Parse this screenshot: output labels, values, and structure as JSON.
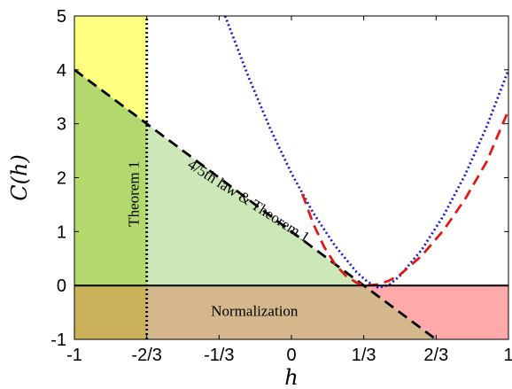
{
  "chart_data": {
    "type": "line",
    "xlabel": "h",
    "ylabel": "C(h)",
    "xlim": [
      -1,
      1
    ],
    "ylim": [
      -1,
      5
    ],
    "x_ticks": [
      {
        "value": -1,
        "label": "-1"
      },
      {
        "value": -0.6667,
        "label": "-2/3"
      },
      {
        "value": -0.3333,
        "label": "-1/3"
      },
      {
        "value": 0,
        "label": "0"
      },
      {
        "value": 0.3333,
        "label": "1/3"
      },
      {
        "value": 0.6667,
        "label": "2/3"
      },
      {
        "value": 1,
        "label": "1"
      }
    ],
    "y_ticks": [
      {
        "value": -1,
        "label": "-1"
      },
      {
        "value": 0,
        "label": "0"
      },
      {
        "value": 1,
        "label": "1"
      },
      {
        "value": 2,
        "label": "2"
      },
      {
        "value": 3,
        "label": "3"
      },
      {
        "value": 4,
        "label": "4"
      },
      {
        "value": 5,
        "label": "5"
      }
    ],
    "grid": false,
    "regions": [
      {
        "label": "Theorem 1",
        "color": "#ffff80",
        "polygon": [
          [
            -1,
            4
          ],
          [
            -0.6667,
            3
          ],
          [
            -0.6667,
            5
          ],
          [
            -1,
            5
          ]
        ]
      },
      {
        "label": "4/5th law & Theorem 1",
        "color": "#cde8b8",
        "polygon": [
          [
            -1,
            4
          ],
          [
            0.3333,
            0
          ],
          [
            -1,
            0
          ]
        ]
      },
      {
        "label": "Normalization",
        "color": "#d4b88c",
        "polygon": [
          [
            -1,
            0
          ],
          [
            0.3333,
            0
          ],
          [
            0.6667,
            -1
          ],
          [
            -1,
            -1
          ]
        ]
      },
      {
        "label": "",
        "color": "#ffaaaa",
        "polygon": [
          [
            0.3333,
            0
          ],
          [
            1,
            0
          ],
          [
            1,
            -1
          ],
          [
            0.6667,
            -1
          ]
        ]
      },
      {
        "label": "",
        "color": "#c9b25a",
        "polygon": [
          [
            -1,
            0
          ],
          [
            -0.6667,
            0
          ],
          [
            -0.6667,
            -1
          ],
          [
            -1,
            -1
          ]
        ]
      },
      {
        "label": "",
        "color": "#b3d96e",
        "polygon": [
          [
            -1,
            4
          ],
          [
            -0.6667,
            3
          ],
          [
            -0.6667,
            0
          ],
          [
            -1,
            0
          ]
        ]
      }
    ],
    "series": [
      {
        "style": "dashed",
        "color": "#000000",
        "x": [
          -1,
          0.6667
        ],
        "y": [
          4,
          -1
        ]
      },
      {
        "style": "dotted",
        "color": "#1a1acc",
        "x": [
          -0.3056,
          -0.2,
          -0.1,
          0,
          0.1,
          0.2,
          0.3,
          0.35,
          0.4,
          0.45,
          0.5,
          0.6,
          0.7,
          0.8,
          0.9,
          1.0
        ],
        "y": [
          5.0,
          3.89,
          2.93,
          2.08,
          1.35,
          0.74,
          0.25,
          0.07,
          -0.04,
          0.01,
          0.18,
          0.66,
          1.29,
          2.05,
          2.95,
          4.0
        ]
      },
      {
        "style": "dashed",
        "color": "#e01a1a",
        "x": [
          0.05,
          0.1,
          0.15,
          0.2,
          0.25,
          0.3,
          0.35,
          0.4,
          0.45,
          0.5,
          0.6,
          0.7,
          0.8,
          0.9,
          1.0
        ],
        "y": [
          1.7,
          1.15,
          0.72,
          0.4,
          0.18,
          0.05,
          0.0,
          0.02,
          0.09,
          0.2,
          0.55,
          1.02,
          1.6,
          2.3,
          3.25
        ]
      },
      {
        "style": "dotted",
        "color": "#000000",
        "x": [
          -0.6667,
          -0.6667
        ],
        "y": [
          -1,
          5
        ]
      },
      {
        "style": "solid",
        "color": "#000000",
        "x": [
          -1,
          1
        ],
        "y": [
          0,
          0
        ]
      }
    ],
    "region_labels": [
      {
        "text": "Theorem 1",
        "x": -0.72,
        "y": 1.7,
        "rotate": -90
      },
      {
        "text": "4/5th law & Theorem 1",
        "x": -0.2,
        "y": 1.55,
        "rotate": 32.5
      },
      {
        "text": "Normalization",
        "x": -0.17,
        "y": -0.5,
        "rotate": 0
      }
    ]
  }
}
